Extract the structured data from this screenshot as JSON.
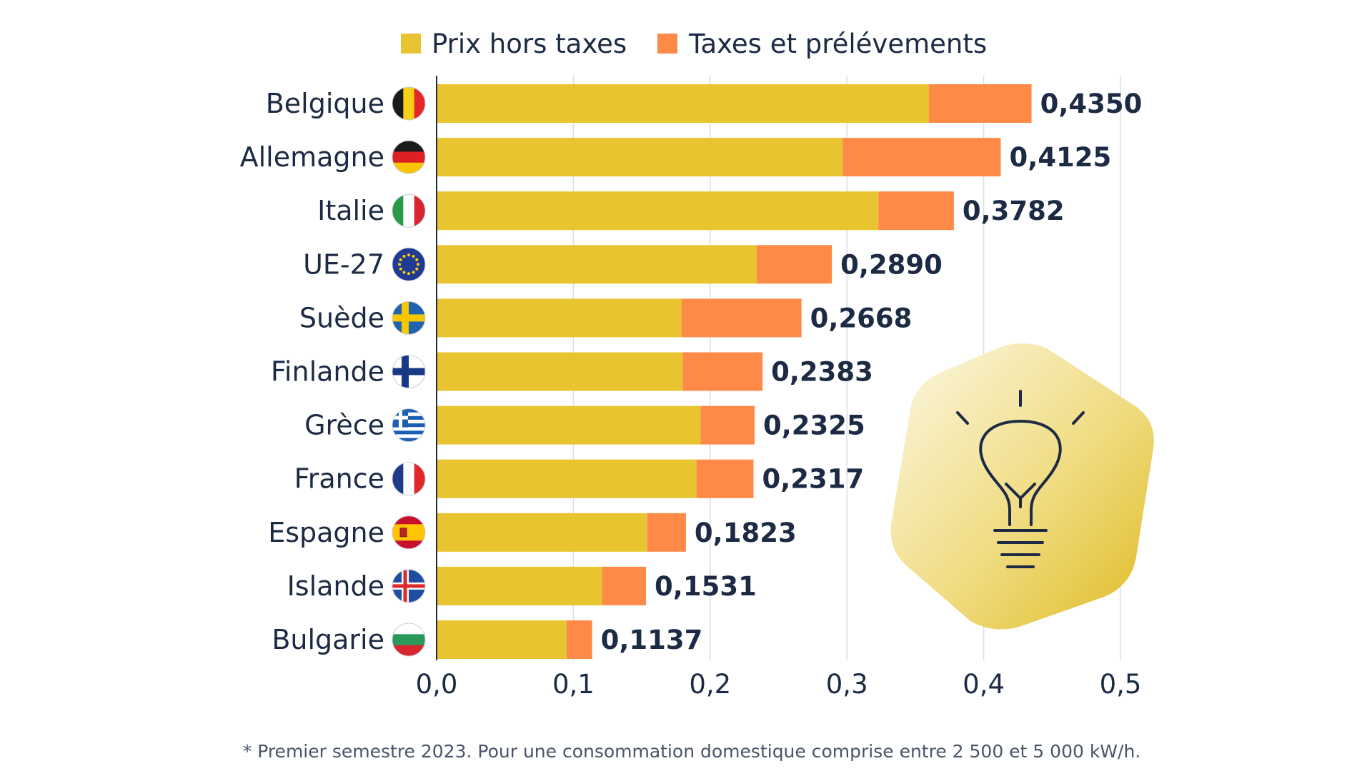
{
  "chart_data": {
    "type": "bar",
    "orientation": "horizontal",
    "stacked": true,
    "categories": [
      "Belgique",
      "Allemagne",
      "Italie",
      "UE-27",
      "Suède",
      "Finlande",
      "Grèce",
      "France",
      "Espagne",
      "Islande",
      "Bulgarie"
    ],
    "flags": [
      "flag-belgium",
      "flag-germany",
      "flag-italy",
      "flag-eu",
      "flag-sweden",
      "flag-finland",
      "flag-greece",
      "flag-france",
      "flag-spain",
      "flag-iceland",
      "flag-bulgaria"
    ],
    "series": [
      {
        "name": "Prix hors taxes",
        "color": "#e8c431",
        "values": [
          0.36,
          0.297,
          0.323,
          0.234,
          0.179,
          0.18,
          0.193,
          0.19,
          0.154,
          0.121,
          0.095
        ]
      },
      {
        "name": "Taxes et prélévements",
        "color": "#ff8a48",
        "values": [
          0.075,
          0.1155,
          0.0552,
          0.055,
          0.0878,
          0.0583,
          0.0395,
          0.0417,
          0.0283,
          0.0321,
          0.0187
        ]
      }
    ],
    "totals": [
      0.435,
      0.4125,
      0.3782,
      0.289,
      0.2668,
      0.2383,
      0.2325,
      0.2317,
      0.1823,
      0.1531,
      0.1137
    ],
    "total_labels": [
      "0,4350",
      "0,4125",
      "0,3782",
      "0,2890",
      "0,2668",
      "0,2383",
      "0,2325",
      "0,2317",
      "0,1823",
      "0,1531",
      "0,1137"
    ],
    "xlim": [
      0,
      0.5
    ],
    "xticks": [
      0,
      0.1,
      0.2,
      0.3,
      0.4,
      0.5
    ],
    "xtick_labels": [
      "0,0",
      "0,1",
      "0,2",
      "0,3",
      "0,4",
      "0,5"
    ],
    "grid": true,
    "legend_position": "top",
    "title": "",
    "xlabel": "",
    "ylabel": "",
    "footnote": "* Premier semestre 2023. Pour une consommation domestique comprise entre 2 500 et 5 000 kW/h.",
    "decoration_icon": "lightbulb-icon"
  },
  "colors": {
    "text": "#1c2a44",
    "grid": "#d9dde3",
    "axis": "#1c2a44",
    "badge_light": "#fbf6dc",
    "badge_dark": "#e3c235"
  }
}
